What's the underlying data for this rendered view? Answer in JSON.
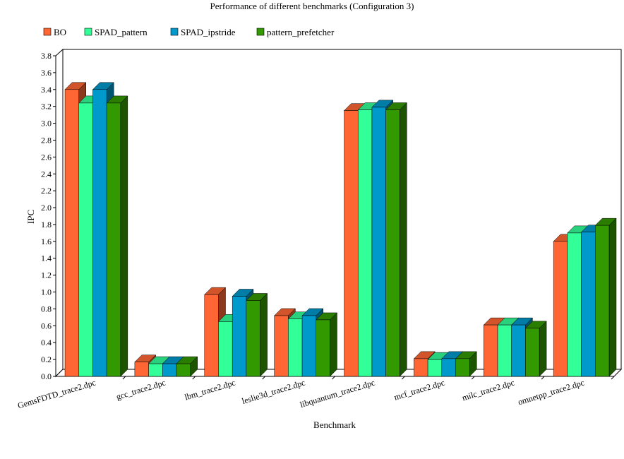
{
  "chart_data": {
    "type": "bar",
    "title": "Performance of different benchmarks (Configuration 3)",
    "xlabel": "Benchmark",
    "ylabel": "IPC",
    "ylim": [
      0,
      3.8
    ],
    "yticks": [
      "0.0",
      "0.2",
      "0.4",
      "0.6",
      "0.8",
      "1.0",
      "1.2",
      "1.4",
      "1.6",
      "1.8",
      "2.0",
      "2.2",
      "2.4",
      "2.6",
      "2.8",
      "3.0",
      "3.2",
      "3.4",
      "3.6",
      "3.8"
    ],
    "grid": false,
    "legend_position": "top-left",
    "style": "3d",
    "categories": [
      "GemsFDTD_trace2.dpc",
      "gcc_trace2.dpc",
      "lbm_trace2.dpc",
      "leslie3d_trace2.dpc",
      "libquantum_trace2.dpc",
      "mcf_trace2.dpc",
      "milc_trace2.dpc",
      "omnetpp_trace2.dpc"
    ],
    "series": [
      {
        "name": "BO",
        "color": "#ff6633",
        "values": [
          3.4,
          0.17,
          0.97,
          0.72,
          3.15,
          0.21,
          0.61,
          1.6
        ]
      },
      {
        "name": "SPAD_pattern",
        "color": "#33ff99",
        "values": [
          3.24,
          0.15,
          0.65,
          0.68,
          3.16,
          0.2,
          0.61,
          1.7
        ]
      },
      {
        "name": "SPAD_ipstride",
        "color": "#0099cc",
        "values": [
          3.4,
          0.15,
          0.95,
          0.72,
          3.19,
          0.21,
          0.61,
          1.71
        ]
      },
      {
        "name": "pattern_prefetcher",
        "color": "#339900",
        "values": [
          3.24,
          0.15,
          0.9,
          0.67,
          3.16,
          0.21,
          0.57,
          1.79
        ]
      }
    ]
  }
}
